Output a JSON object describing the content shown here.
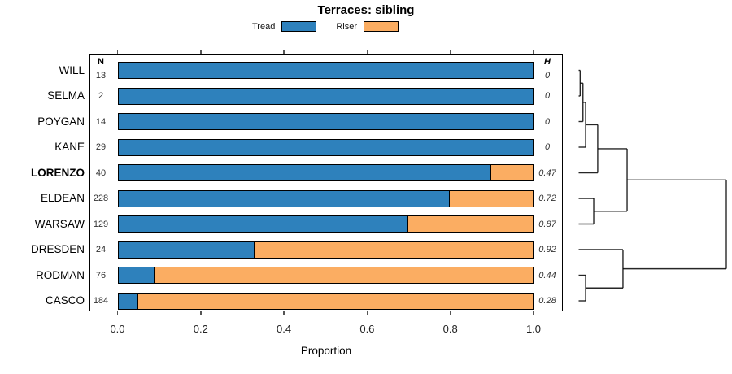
{
  "title": "Terraces: sibling",
  "xlabel": "Proportion",
  "columns": {
    "n_header": "N",
    "h_header": "H"
  },
  "legend": [
    {
      "label": "Tread",
      "color": "#2E81BC"
    },
    {
      "label": "Riser",
      "color": "#FBAD62"
    }
  ],
  "colors": {
    "tread": "#2E81BC",
    "riser": "#FBAD62",
    "border": "#000000"
  },
  "chart_data": {
    "type": "bar",
    "orientation": "horizontal",
    "stacked": true,
    "title": "Terraces: sibling",
    "xlabel": "Proportion",
    "xlim": [
      0,
      1
    ],
    "x_ticks": [
      0,
      0.2,
      0.4,
      0.6,
      0.8,
      1.0
    ],
    "x_tick_labels": [
      "0.0",
      "0.2",
      "0.4",
      "0.6",
      "0.8",
      "1.0"
    ],
    "series_names": [
      "Tread",
      "Riser"
    ],
    "rows": [
      {
        "site": "WILL",
        "n": 13,
        "h": "0",
        "tread": 1.0,
        "riser": 0.0,
        "bold": false
      },
      {
        "site": "SELMA",
        "n": 2,
        "h": "0",
        "tread": 1.0,
        "riser": 0.0,
        "bold": false
      },
      {
        "site": "POYGAN",
        "n": 14,
        "h": "0",
        "tread": 1.0,
        "riser": 0.0,
        "bold": false
      },
      {
        "site": "KANE",
        "n": 29,
        "h": "0",
        "tread": 1.0,
        "riser": 0.0,
        "bold": false
      },
      {
        "site": "LORENZO",
        "n": 40,
        "h": "0.47",
        "tread": 0.9,
        "riser": 0.1,
        "bold": true
      },
      {
        "site": "ELDEAN",
        "n": 228,
        "h": "0.72",
        "tread": 0.8,
        "riser": 0.2,
        "bold": false
      },
      {
        "site": "WARSAW",
        "n": 129,
        "h": "0.87",
        "tread": 0.7,
        "riser": 0.3,
        "bold": false
      },
      {
        "site": "DRESDEN",
        "n": 24,
        "h": "0.92",
        "tread": 0.33,
        "riser": 0.67,
        "bold": false
      },
      {
        "site": "RODMAN",
        "n": 76,
        "h": "0.44",
        "tread": 0.09,
        "riser": 0.91,
        "bold": false
      },
      {
        "site": "CASCO",
        "n": 184,
        "h": "0.28",
        "tread": 0.05,
        "riser": 0.95,
        "bold": false
      }
    ],
    "dendrogram": {
      "h": 1.0,
      "children": [
        {
          "h": 0.328,
          "children": [
            {
              "h": 0.129,
              "children": [
                {
                  "h": 0.047,
                  "children": [
                    {
                      "h": 0.029,
                      "children": [
                        {
                          "h": 0.01,
                          "children": [
                            {
                              "leaf": "WILL"
                            },
                            {
                              "leaf": "SELMA"
                            }
                          ]
                        },
                        {
                          "leaf": "POYGAN"
                        }
                      ]
                    },
                    {
                      "leaf": "KANE"
                    }
                  ]
                },
                {
                  "leaf": "LORENZO"
                }
              ]
            },
            {
              "h": 0.102,
              "children": [
                {
                  "leaf": "ELDEAN"
                },
                {
                  "leaf": "WARSAW"
                }
              ]
            }
          ]
        },
        {
          "h": 0.3,
          "children": [
            {
              "leaf": "DRESDEN"
            },
            {
              "h": 0.047,
              "children": [
                {
                  "leaf": "RODMAN"
                },
                {
                  "leaf": "CASCO"
                }
              ]
            }
          ]
        }
      ]
    }
  }
}
